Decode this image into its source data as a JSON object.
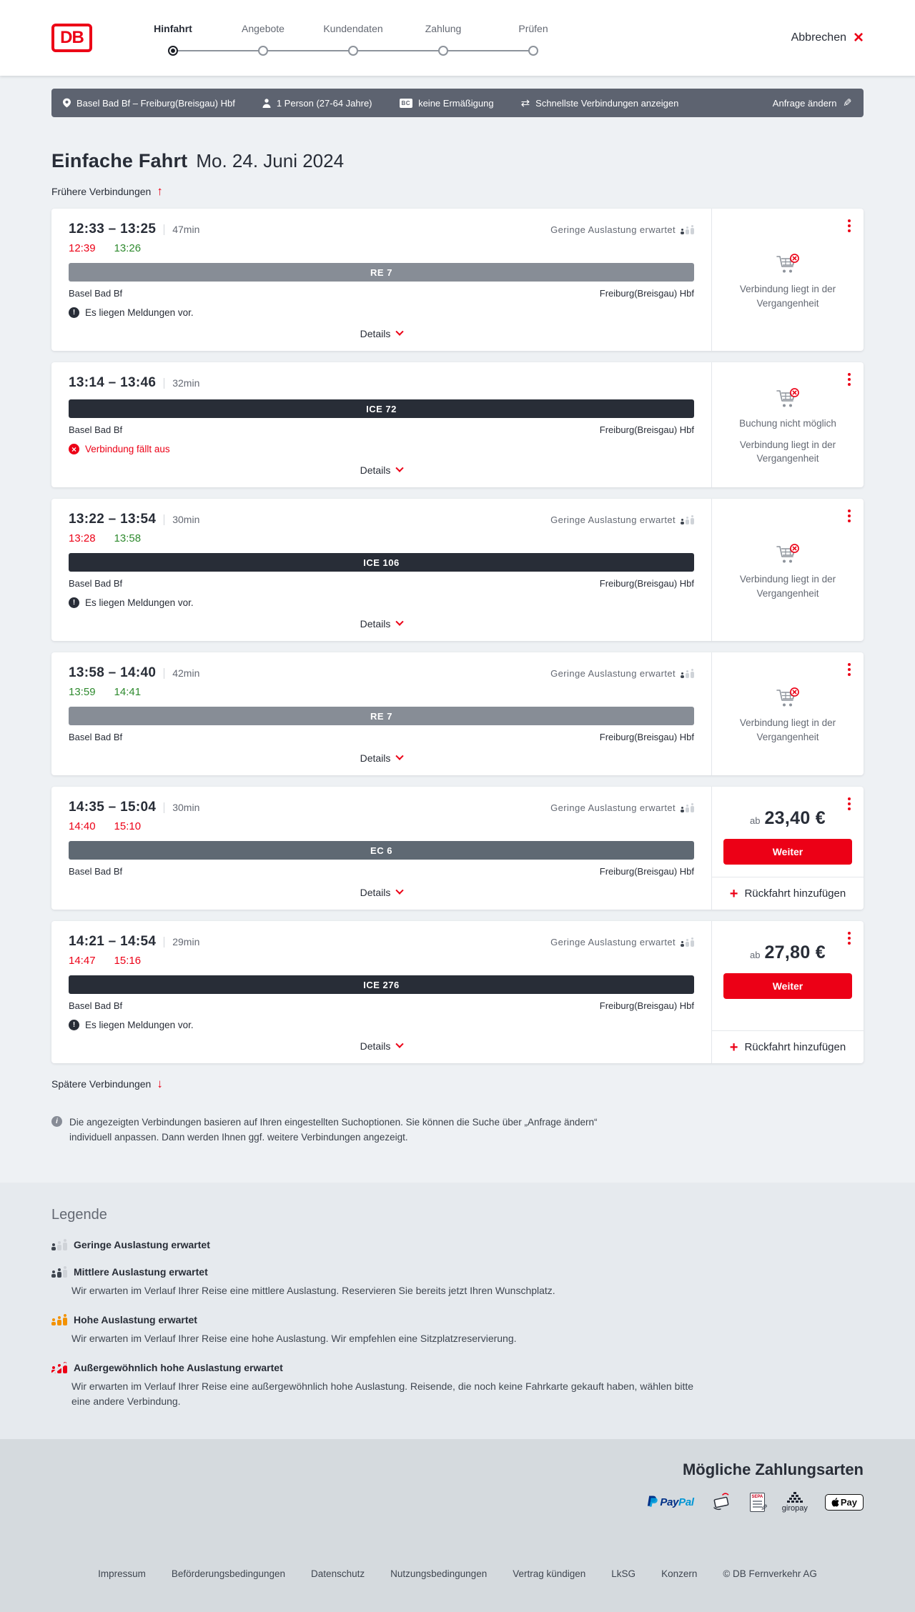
{
  "header": {
    "logo_text": "DB",
    "steps": [
      {
        "label": "Hinfahrt",
        "active": true
      },
      {
        "label": "Angebote",
        "active": false
      },
      {
        "label": "Kundendaten",
        "active": false
      },
      {
        "label": "Zahlung",
        "active": false
      },
      {
        "label": "Prüfen",
        "active": false
      }
    ],
    "cancel_label": "Abbrechen"
  },
  "icons": {
    "earlier_arrow": "↑",
    "later_arrow": "↓",
    "swap_arrows": "⇄",
    "edit_pencil": "✎",
    "close_x": "×",
    "plus": "+",
    "notice_glyph": "!",
    "cancel_glyph": "×",
    "info_glyph": "i"
  },
  "search_summary": {
    "route": "Basel Bad Bf – Freiburg(Breisgau) Hbf",
    "passenger": "1 Person (27-64 Jahre)",
    "discount_badge": "BC",
    "discount": "keine Ermäßigung",
    "sort": "Schnellste Verbindungen anzeigen",
    "edit": "Anfrage ändern"
  },
  "results": {
    "title": "Einfache Fahrt",
    "date": "Mo. 24. Juni 2024",
    "earlier": "Frühere Verbindungen",
    "later": "Spätere Verbindungen",
    "details_label": "Details",
    "info_note": "Die angezeigten Verbindungen basieren auf Ihren eingestellten Suchoptionen. Sie können die Suche über „Anfrage ändern“ individuell anpassen. Dann werden Ihnen ggf. weitere Verbindungen angezeigt."
  },
  "connections": [
    {
      "time_range": "12:33 – 13:25",
      "duration": "47min",
      "occupancy": "Geringe Auslastung erwartet",
      "real_departure": {
        "time": "12:39",
        "status": "delayed"
      },
      "real_arrival": {
        "time": "13:26",
        "status": "ontime"
      },
      "train": "RE 7",
      "train_type": "re",
      "from": "Basel Bad Bf",
      "to": "Freiburg(Breisgau) Hbf",
      "message": {
        "type": "notice",
        "text": "Es liegen Meldungen vor."
      },
      "panel": {
        "type": "past",
        "lines": [
          "Verbindung liegt in der Vergangenheit"
        ]
      }
    },
    {
      "time_range": "13:14 – 13:46",
      "duration": "32min",
      "train": "ICE 72",
      "train_type": "ice",
      "from": "Basel Bad Bf",
      "to": "Freiburg(Breisgau) Hbf",
      "message": {
        "type": "cancelled",
        "text": "Verbindung fällt aus"
      },
      "panel": {
        "type": "past",
        "lines": [
          "Buchung nicht möglich",
          "Verbindung liegt in der Vergangenheit"
        ]
      }
    },
    {
      "time_range": "13:22 – 13:54",
      "duration": "30min",
      "occupancy": "Geringe Auslastung erwartet",
      "real_departure": {
        "time": "13:28",
        "status": "delayed"
      },
      "real_arrival": {
        "time": "13:58",
        "status": "ontime"
      },
      "train": "ICE 106",
      "train_type": "ice",
      "from": "Basel Bad Bf",
      "to": "Freiburg(Breisgau) Hbf",
      "message": {
        "type": "notice",
        "text": "Es liegen Meldungen vor."
      },
      "panel": {
        "type": "past",
        "lines": [
          "Verbindung liegt in der Vergangenheit"
        ]
      }
    },
    {
      "time_range": "13:58 – 14:40",
      "duration": "42min",
      "occupancy": "Geringe Auslastung erwartet",
      "real_departure": {
        "time": "13:59",
        "status": "ontime"
      },
      "real_arrival": {
        "time": "14:41",
        "status": "ontime"
      },
      "train": "RE 7",
      "train_type": "re",
      "from": "Basel Bad Bf",
      "to": "Freiburg(Breisgau) Hbf",
      "panel": {
        "type": "past",
        "lines": [
          "Verbindung liegt in der Vergangenheit"
        ]
      }
    },
    {
      "time_range": "14:35 – 15:04",
      "duration": "30min",
      "occupancy": "Geringe Auslastung erwartet",
      "real_departure": {
        "time": "14:40",
        "status": "delayed"
      },
      "real_arrival": {
        "time": "15:10",
        "status": "delayed"
      },
      "train": "EC 6",
      "train_type": "ec",
      "from": "Basel Bad Bf",
      "to": "Freiburg(Breisgau) Hbf",
      "panel": {
        "type": "price",
        "prefix": "ab",
        "price": "23,40 €",
        "cta": "Weiter",
        "add_return": "Rückfahrt hinzufügen"
      }
    },
    {
      "time_range": "14:21 – 14:54",
      "duration": "29min",
      "occupancy": "Geringe Auslastung erwartet",
      "real_departure": {
        "time": "14:47",
        "status": "delayed"
      },
      "real_arrival": {
        "time": "15:16",
        "status": "delayed"
      },
      "train": "ICE 276",
      "train_type": "ice",
      "from": "Basel Bad Bf",
      "to": "Freiburg(Breisgau) Hbf",
      "message": {
        "type": "notice",
        "text": "Es liegen Meldungen vor."
      },
      "panel": {
        "type": "price",
        "prefix": "ab",
        "price": "27,80 €",
        "cta": "Weiter",
        "add_return": "Rückfahrt hinzufügen"
      }
    }
  ],
  "legend": {
    "title": "Legende",
    "items": [
      {
        "label": "Geringe Auslastung erwartet",
        "desc": "",
        "level": 1,
        "color": "dark"
      },
      {
        "label": "Mittlere Auslastung erwartet",
        "desc": "Wir erwarten im Verlauf Ihrer Reise eine mittlere Auslastung. Reservieren Sie bereits jetzt Ihren Wunschplatz.",
        "level": 2,
        "color": "dark"
      },
      {
        "label": "Hohe Auslastung erwartet",
        "desc": "Wir erwarten im Verlauf Ihrer Reise eine hohe Auslastung. Wir empfehlen eine Sitzplatzreservierung.",
        "level": 3,
        "color": "orange"
      },
      {
        "label": "Außergewöhnlich hohe Auslastung erwartet",
        "desc": "Wir erwarten im Verlauf Ihrer Reise eine außergewöhnlich hohe Auslastung. Reisende, die noch keine Fahrkarte gekauft haben, wählen bitte eine andere Verbindung.",
        "level": 4,
        "color": "red"
      }
    ]
  },
  "payment": {
    "title": "Mögliche Zahlungsarten",
    "methods": [
      {
        "name": "paypal",
        "label_bold": "Pay",
        "label_light": "Pal"
      },
      {
        "name": "creditcard"
      },
      {
        "name": "sepa",
        "label": "SEPA"
      },
      {
        "name": "giropay",
        "label": "giropay"
      },
      {
        "name": "applepay",
        "label": "Pay"
      }
    ]
  },
  "footer": {
    "links": [
      "Impressum",
      "Beförderungsbedingungen",
      "Datenschutz",
      "Nutzungsbedingungen",
      "Vertrag kündigen",
      "LkSG",
      "Konzern"
    ],
    "copyright": "© DB Fernverkehr AG"
  }
}
